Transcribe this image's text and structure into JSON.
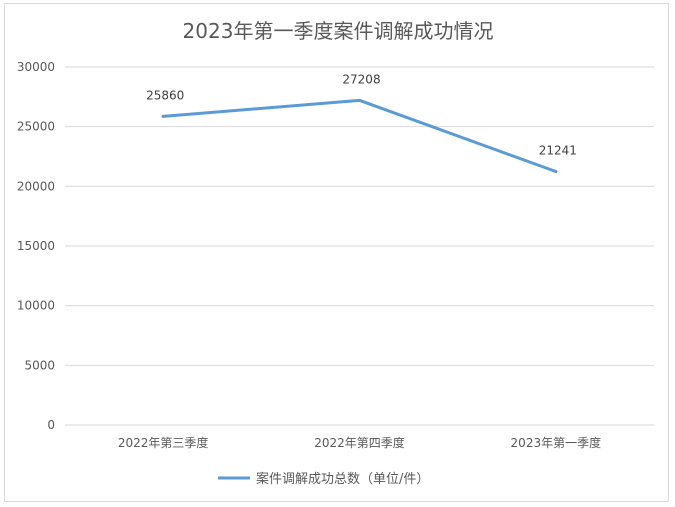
{
  "chart_data": {
    "type": "line",
    "title": "2023年第一季度案件调解成功情况",
    "categories": [
      "2022年第三季度",
      "2022年第四季度",
      "2023年第一季度"
    ],
    "series": [
      {
        "name": "案件调解成功总数（单位/件）",
        "values": [
          25860,
          27208,
          21241
        ],
        "color": "#5b9bd5"
      }
    ],
    "data_labels": [
      "25860",
      "27208",
      "21241"
    ],
    "yticks": [
      "0",
      "5000",
      "10000",
      "15000",
      "20000",
      "25000",
      "30000"
    ],
    "ylim": [
      0,
      30000
    ],
    "grid": true,
    "legend": "bottom"
  }
}
